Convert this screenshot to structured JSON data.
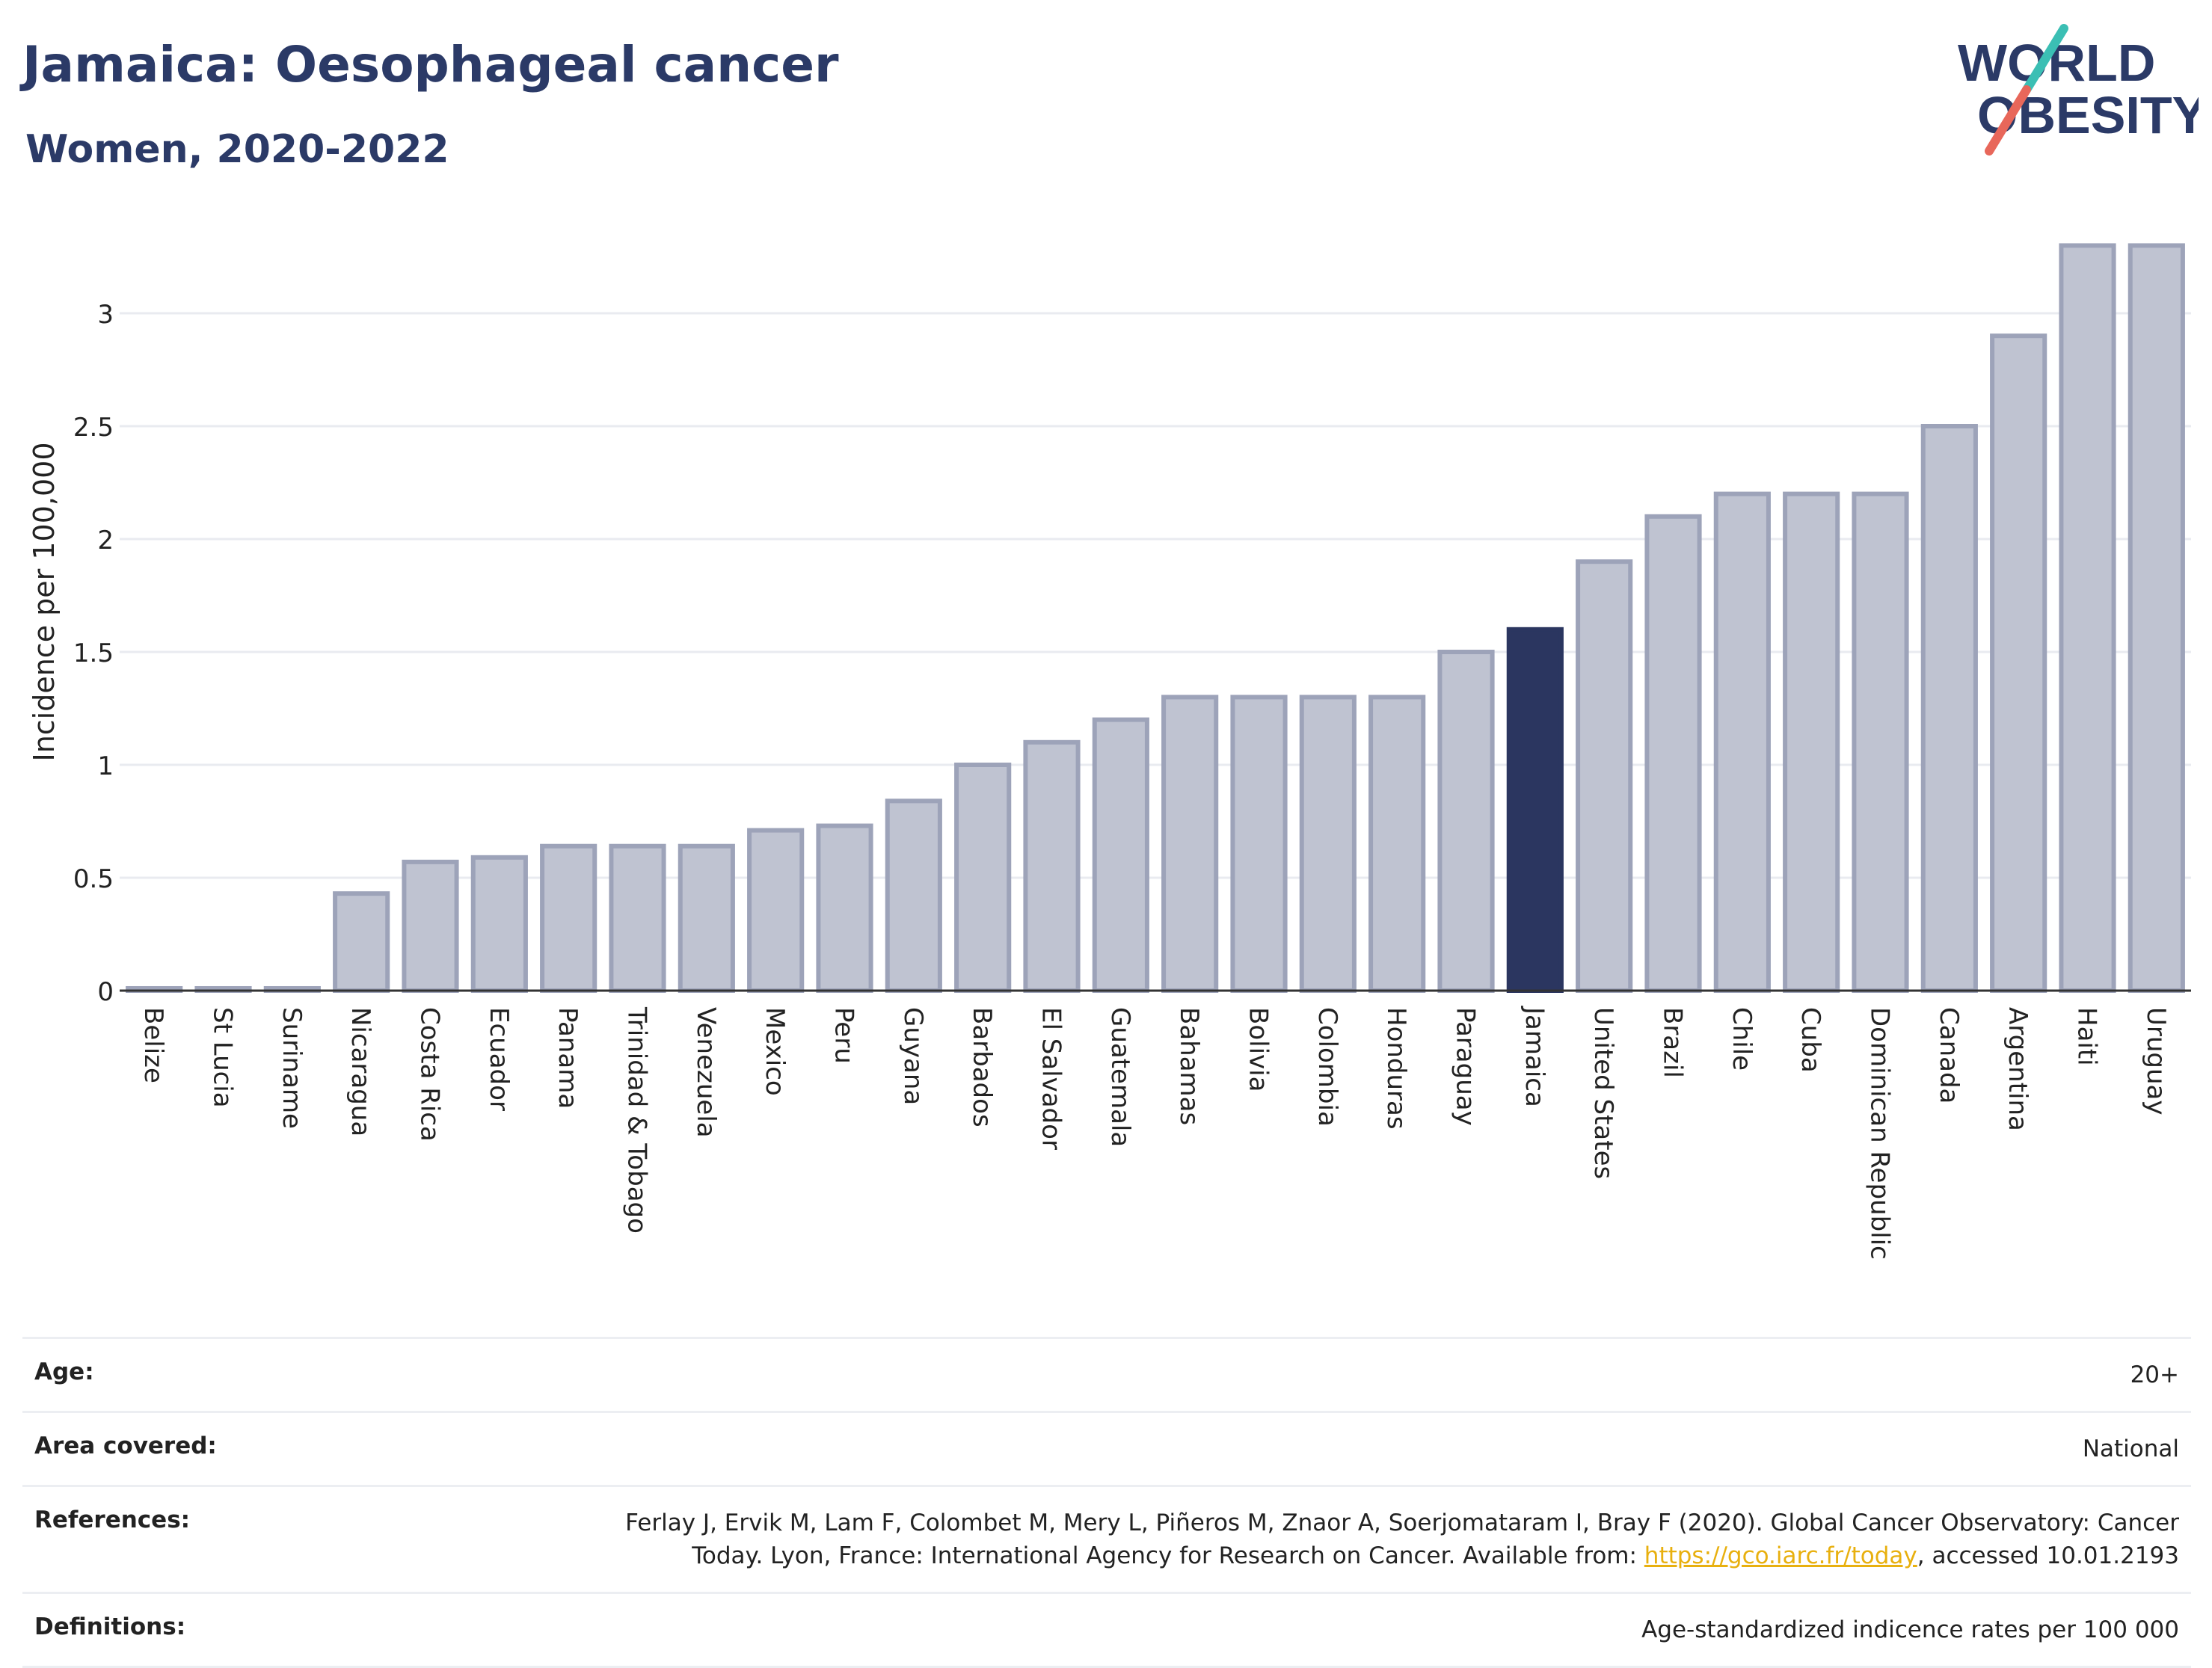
{
  "header": {
    "title": "Jamaica: Oesophageal cancer",
    "subtitle": "Women, 2020-2022"
  },
  "logo": {
    "line1": "WORLD",
    "line2": "OBESITY",
    "colors": {
      "text": "#2b3a67",
      "slash_teal": "#3bbfb4",
      "slash_coral": "#e8675a"
    }
  },
  "chart_data": {
    "type": "bar",
    "ylabel": "Incidence per 100,000",
    "xlabel": "",
    "ylim": [
      0,
      3.3
    ],
    "yticks": [
      0,
      0.5,
      1,
      1.5,
      2,
      2.5,
      3
    ],
    "ytick_labels": [
      "0",
      "0.5",
      "1",
      "1.5",
      "2",
      "2.5",
      "3"
    ],
    "grid": true,
    "highlight": "Jamaica",
    "colors": {
      "bar": "#bfc3d1",
      "bar_edge": "#9da3b9",
      "highlight": "#2b3660"
    },
    "categories": [
      "Belize",
      "St Lucia",
      "Suriname",
      "Nicaragua",
      "Costa Rica",
      "Ecuador",
      "Panama",
      "Trinidad & Tobago",
      "Venezuela",
      "Mexico",
      "Peru",
      "Guyana",
      "Barbados",
      "El Salvador",
      "Guatemala",
      "Bahamas",
      "Bolivia",
      "Colombia",
      "Honduras",
      "Paraguay",
      "Jamaica",
      "United States",
      "Brazil",
      "Chile",
      "Cuba",
      "Dominican Republic",
      "Canada",
      "Argentina",
      "Haiti",
      "Uruguay"
    ],
    "values": [
      0.01,
      0.01,
      0.01,
      0.43,
      0.57,
      0.59,
      0.64,
      0.64,
      0.64,
      0.71,
      0.73,
      0.84,
      1.0,
      1.1,
      1.2,
      1.3,
      1.3,
      1.3,
      1.3,
      1.5,
      1.6,
      1.9,
      2.1,
      2.2,
      2.2,
      2.2,
      2.5,
      2.9,
      3.3,
      3.3
    ]
  },
  "info": {
    "rows": [
      {
        "label": "Age:",
        "value": "20+"
      },
      {
        "label": "Area covered:",
        "value": "National"
      },
      {
        "label": "References:",
        "value_pre": "Ferlay J, Ervik M, Lam F, Colombet M, Mery L, Piñeros M, Znaor A, Soerjomataram I, Bray F (2020). Global Cancer Observatory: Cancer Today. Lyon, France: International Agency for Research on Cancer. Available from: ",
        "link": "https://gco.iarc.fr/today",
        "value_post": ", accessed 10.01.2193"
      },
      {
        "label": "Definitions:",
        "value": "Age-standardized indicence rates per 100 000"
      }
    ]
  }
}
